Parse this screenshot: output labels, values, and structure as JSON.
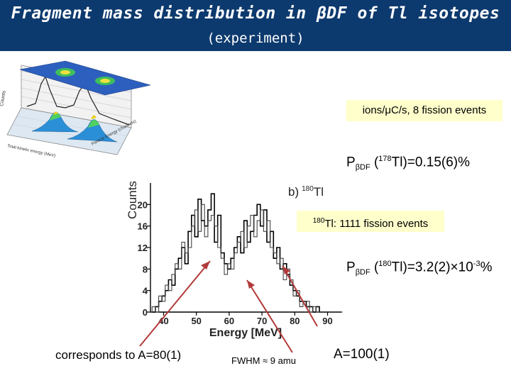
{
  "slide": {
    "title": "Fragment mass distribution in βDF of Tl isotopes",
    "subtitle": "(experiment)"
  },
  "info_box_top": "ions/μC/s, 8 fission events",
  "info_box_mid": {
    "isotope_mass": "180",
    "text": "Tl: 1111 fission events"
  },
  "prob_178": {
    "p": "P",
    "sub": "βDF",
    "open": " (",
    "mass": "178",
    "rest": "Tl)=0.15(6)%"
  },
  "prob_180": {
    "p": "P",
    "sub": "βDF",
    "open": " (",
    "mass": "180",
    "rest": "Tl)=3.2(2)×10",
    "exp": "-3",
    "pct": "%"
  },
  "annotations": {
    "left": "corresponds to A=80(1)",
    "middle": "FWHM ≈ 9 amu",
    "right": "A=100(1)"
  },
  "arrow_color": "#b23a3a",
  "plot3d_labels": {
    "z_axis": "Counts",
    "x_axis": "Total kinetic energy (MeV)",
    "y_axis": "Particle Energy (channels)"
  },
  "chart_data": {
    "type": "line",
    "panel_label": "b)",
    "panel_isotope_mass": "180",
    "panel_isotope": "Tl",
    "xlabel": "Energy [MeV]",
    "ylabel": "Counts",
    "xlim": [
      36,
      94
    ],
    "ylim": [
      0,
      24
    ],
    "xticks": [
      40,
      50,
      60,
      70,
      80,
      90
    ],
    "yticks": [
      0,
      4,
      8,
      12,
      16,
      20
    ],
    "series": [
      {
        "x": [
          36,
          37,
          38,
          39,
          40,
          41,
          42,
          43,
          44,
          45,
          46,
          47,
          48,
          49,
          50,
          51,
          52,
          53,
          54,
          55,
          56,
          57,
          58,
          59,
          60,
          61,
          62,
          63,
          64,
          65,
          66,
          67,
          68,
          69,
          70,
          71,
          72,
          73,
          74,
          75,
          76,
          77,
          78,
          79,
          80,
          81,
          82,
          83,
          84,
          85,
          86,
          87,
          88,
          89,
          90,
          91,
          92,
          93,
          94
        ],
        "y": [
          0,
          0,
          1,
          2,
          3,
          4,
          6,
          5,
          8,
          10,
          12,
          9,
          15,
          18,
          14,
          21,
          17,
          16,
          19,
          22,
          13,
          18,
          11,
          9,
          8,
          10,
          12,
          14,
          11,
          17,
          13,
          15,
          18,
          20,
          16,
          19,
          13,
          15,
          10,
          12,
          8,
          9,
          7,
          5,
          4,
          3,
          2,
          2,
          1,
          1,
          0,
          1,
          0,
          0,
          0,
          0,
          0,
          0,
          0
        ]
      },
      {
        "x": [
          36,
          37,
          38,
          39,
          40,
          41,
          42,
          43,
          44,
          45,
          46,
          47,
          48,
          49,
          50,
          51,
          52,
          53,
          54,
          55,
          56,
          57,
          58,
          59,
          60,
          61,
          62,
          63,
          64,
          65,
          66,
          67,
          68,
          69,
          70,
          71,
          72,
          73,
          74,
          75,
          76,
          77,
          78,
          79,
          80,
          81,
          82,
          83,
          84,
          85,
          86,
          87,
          88,
          89,
          90,
          91,
          92,
          93,
          94
        ],
        "y": [
          0,
          1,
          0,
          3,
          2,
          5,
          4,
          7,
          9,
          8,
          13,
          11,
          12,
          16,
          19,
          15,
          20,
          14,
          17,
          18,
          16,
          12,
          10,
          7,
          9,
          8,
          11,
          13,
          15,
          12,
          16,
          18,
          14,
          17,
          19,
          15,
          17,
          12,
          11,
          9,
          10,
          6,
          8,
          6,
          3,
          4,
          1,
          2,
          2,
          0,
          1,
          0,
          0,
          0,
          0,
          0,
          0,
          0,
          0
        ]
      }
    ]
  }
}
